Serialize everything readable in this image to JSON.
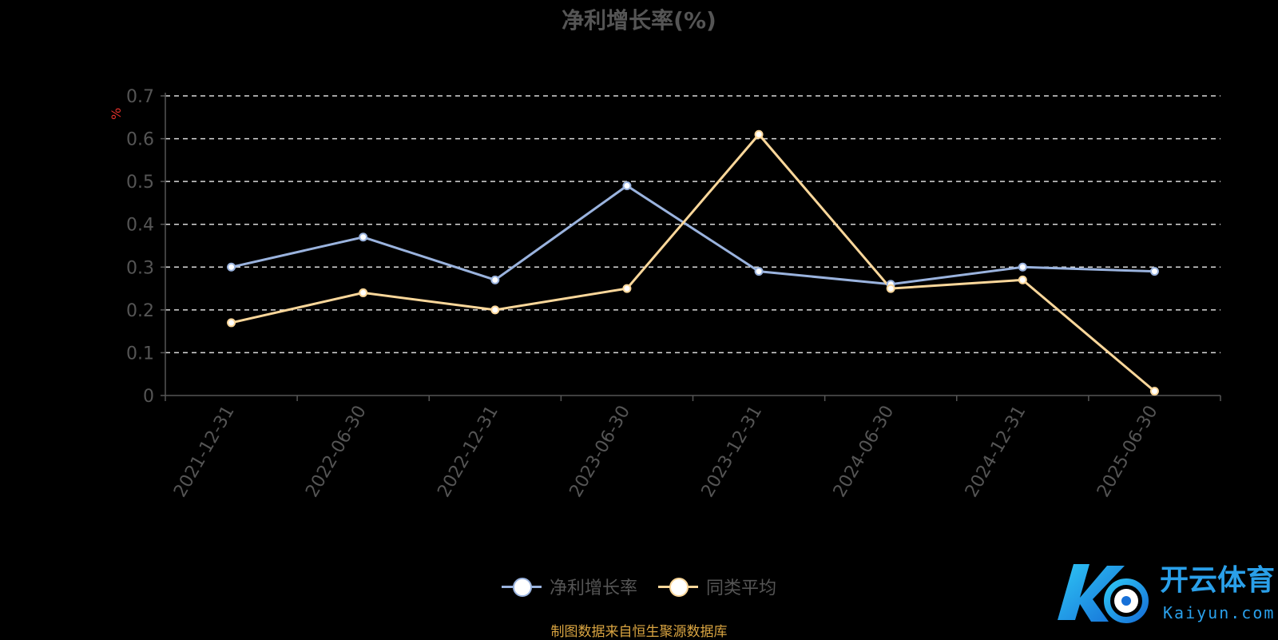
{
  "title": "净利增长率(%)",
  "unit_label": "%",
  "source": "制图数据来自恒生聚源数据库",
  "watermark": {
    "brand": "开云体育",
    "domain": "Kaiyun.com"
  },
  "colors": {
    "series1": "#9ab3de",
    "series2": "#fbd79a",
    "grid": "#d9d9d9",
    "axis": "#555555"
  },
  "chart_data": {
    "type": "line",
    "categories": [
      "2021-12-31",
      "2022-06-30",
      "2022-12-31",
      "2023-06-30",
      "2023-12-31",
      "2024-06-30",
      "2024-12-31",
      "2025-06-30"
    ],
    "series": [
      {
        "name": "净利增长率",
        "values": [
          0.3,
          0.37,
          0.27,
          0.49,
          0.29,
          0.26,
          0.3,
          0.29
        ]
      },
      {
        "name": "同类平均",
        "values": [
          0.17,
          0.24,
          0.2,
          0.25,
          0.61,
          0.25,
          0.27,
          0.01
        ]
      }
    ],
    "yticks": [
      "0",
      "0.1",
      "0.2",
      "0.3",
      "0.4",
      "0.5",
      "0.6",
      "0.7"
    ],
    "ylim": [
      0,
      0.7
    ],
    "grid": true,
    "legend_position": "bottom-center"
  }
}
